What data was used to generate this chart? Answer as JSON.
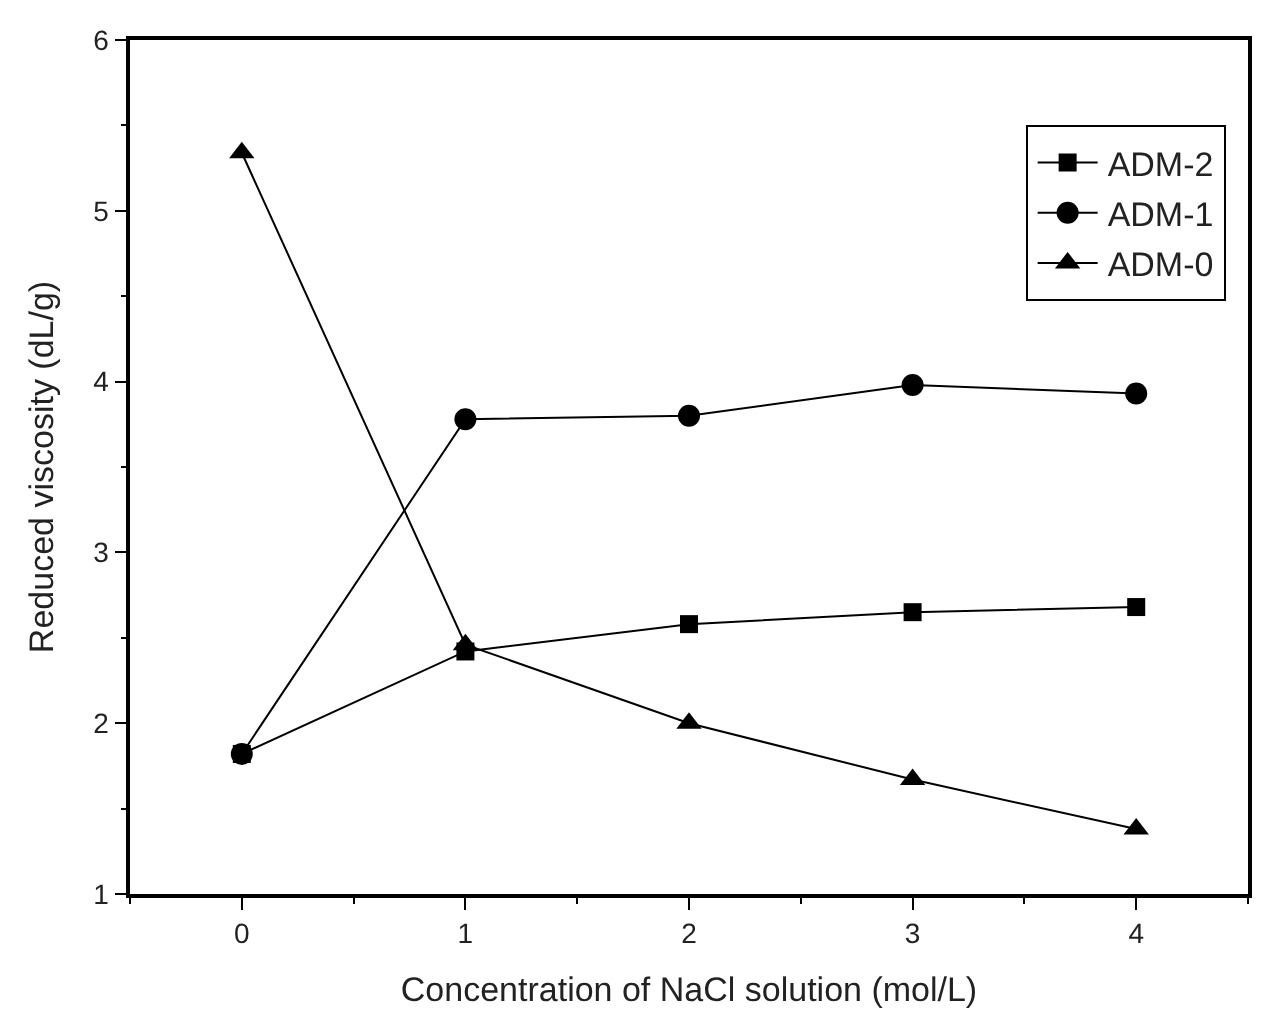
{
  "chart_data": {
    "type": "line",
    "xlabel": "Concentration of NaCl solution (mol/L)",
    "ylabel": "Reduced viscosity (dL/g)",
    "x": [
      0,
      1,
      2,
      3,
      4
    ],
    "xlim": [
      -0.5,
      4.5
    ],
    "xticks": [
      0,
      1,
      2,
      3,
      4
    ],
    "ylim": [
      1,
      6
    ],
    "yticks": [
      1,
      2,
      3,
      4,
      5,
      6
    ],
    "legend": "top right",
    "line_style": "solid",
    "series": [
      {
        "name": "ADM-2",
        "color": "#000000",
        "marker": "square",
        "values": [
          1.82,
          2.42,
          2.58,
          2.65,
          2.68
        ]
      },
      {
        "name": "ADM-1",
        "color": "#000000",
        "marker": "circle",
        "values": [
          1.82,
          3.78,
          3.8,
          3.98,
          3.93
        ]
      },
      {
        "name": "ADM-0",
        "color": "#000000",
        "marker": "triangle",
        "values": [
          5.34,
          2.46,
          2.0,
          1.67,
          1.38
        ]
      }
    ]
  }
}
